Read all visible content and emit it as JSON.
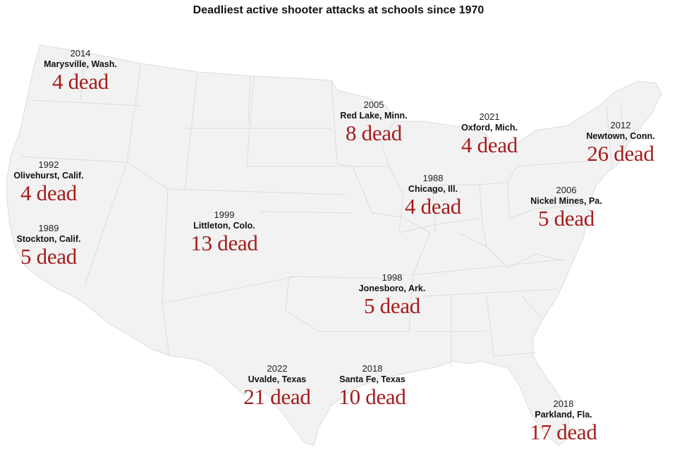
{
  "title": "Deadliest active shooter attacks at schools since 1970",
  "colors": {
    "land": "#f2f2f2",
    "border": "#dcdcdc",
    "dead": "#a51c1c"
  },
  "attacks": [
    {
      "year": "2014",
      "place": "Marysville, Wash.",
      "dead": "4 dead"
    },
    {
      "year": "2005",
      "place": "Red Lake, Minn.",
      "dead": "8 dead"
    },
    {
      "year": "2021",
      "place": "Oxford, Mich.",
      "dead": "4 dead"
    },
    {
      "year": "2012",
      "place": "Newtown, Conn.",
      "dead": "26 dead"
    },
    {
      "year": "1992",
      "place": "Olivehurst, Calif.",
      "dead": "4 dead"
    },
    {
      "year": "1988",
      "place": "Chicago, Ill.",
      "dead": "4 dead"
    },
    {
      "year": "2006",
      "place": "Nickel Mines, Pa.",
      "dead": "5 dead"
    },
    {
      "year": "1999",
      "place": "Littleton, Colo.",
      "dead": "13 dead"
    },
    {
      "year": "1989",
      "place": "Stockton, Calif.",
      "dead": "5 dead"
    },
    {
      "year": "1998",
      "place": "Jonesboro, Ark.",
      "dead": "5 dead"
    },
    {
      "year": "2022",
      "place": "Uvalde, Texas",
      "dead": "21 dead"
    },
    {
      "year": "2018",
      "place": "Santa Fe, Texas",
      "dead": "10 dead"
    },
    {
      "year": "2018",
      "place": "Parkland, Fla.",
      "dead": "17 dead"
    }
  ]
}
